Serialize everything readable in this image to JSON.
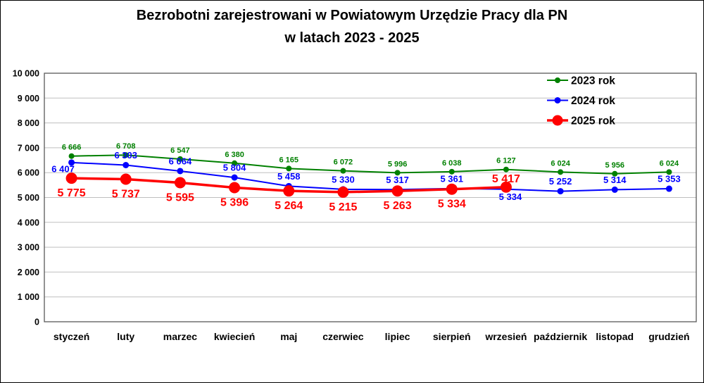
{
  "title": {
    "line1": "Bezrobotni zarejestrowani w Powiatowym Urzędzie Pracy dla PN",
    "line2": "w latach 2023 - 2025"
  },
  "chart_data": {
    "type": "line",
    "title": "Bezrobotni zarejestrowani w Powiatowym Urzędzie Pracy dla PN w latach 2023 - 2025",
    "categories": [
      "styczeń",
      "luty",
      "marzec",
      "kwiecień",
      "maj",
      "czerwiec",
      "lipiec",
      "sierpień",
      "wrzesień",
      "październik",
      "listopad",
      "grudzień"
    ],
    "ylim": [
      0,
      10000
    ],
    "ytick_step": 1000,
    "grid": "horizontal",
    "grid_color": "#BFBFBF",
    "plot_border_color": "#595959",
    "thousands_separator": " ",
    "legend_position": "top-right-inside",
    "series": [
      {
        "name": "2023 rok",
        "color": "#008000",
        "marker_radius": 4,
        "line_width": 2,
        "label_font_size": 11,
        "label_place": "above",
        "label_overrides": {},
        "values": [
          6666,
          6708,
          6547,
          6380,
          6165,
          6072,
          5996,
          6038,
          6127,
          6024,
          5956,
          6024
        ]
      },
      {
        "name": "2024 rok",
        "color": "#0000FF",
        "marker_radius": 4.5,
        "line_width": 2,
        "label_font_size": 13,
        "label_place": "above",
        "label_overrides": {
          "0": {
            "place": "below",
            "dx": -12,
            "dy": -6
          },
          "8": {
            "place": "below",
            "dx": 6,
            "dy": -4
          }
        },
        "values": [
          6407,
          6303,
          6064,
          5804,
          5458,
          5330,
          5317,
          5361,
          5334,
          5252,
          5314,
          5353
        ]
      },
      {
        "name": "2025 rok",
        "color": "#FF0000",
        "marker_radius": 8,
        "line_width": 3.5,
        "label_font_size": 16,
        "label_place": "below",
        "label_overrides": {
          "8": {
            "place": "above",
            "dy": 6
          }
        },
        "values": [
          5775,
          5737,
          5595,
          5396,
          5264,
          5215,
          5263,
          5334,
          5417
        ]
      }
    ]
  }
}
